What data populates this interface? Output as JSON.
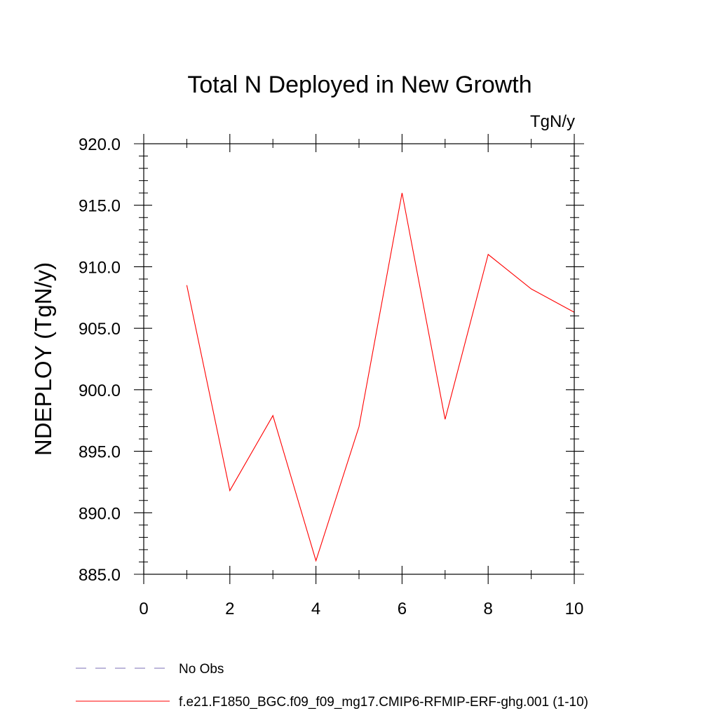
{
  "chart_data": {
    "type": "line",
    "title": "Total N Deployed in New Growth",
    "units_label": "TgN/y",
    "xlabel": "",
    "ylabel": "NDEPLOY  (TgN/y)",
    "xlim": [
      0,
      10
    ],
    "ylim": [
      885,
      920
    ],
    "x_ticks": [
      0,
      2,
      4,
      6,
      8,
      10
    ],
    "y_ticks": [
      885,
      890,
      895,
      900,
      905,
      910,
      915,
      920
    ],
    "y_tick_labels": [
      "885.0",
      "890.0",
      "895.0",
      "900.0",
      "905.0",
      "910.0",
      "915.0",
      "920.0"
    ],
    "grid": false,
    "legend_position": "bottom-left",
    "series": [
      {
        "name": "f.e21.F1850_BGC.f09_f09_mg17.CMIP6-RFMIP-ERF-ghg.001 (1-10)",
        "color": "#ff0000",
        "dash": "solid",
        "x": [
          1,
          2,
          3,
          4,
          5,
          6,
          7,
          8,
          9,
          10
        ],
        "y": [
          908.5,
          891.8,
          897.9,
          886.1,
          897.0,
          916.0,
          897.6,
          911.0,
          908.2,
          906.3
        ]
      }
    ],
    "legend": [
      {
        "label": "No Obs",
        "color": "#7b6fb5",
        "dash": "dashed"
      },
      {
        "label": "f.e21.F1850_BGC.f09_f09_mg17.CMIP6-RFMIP-ERF-ghg.001 (1-10)",
        "color": "#ff0000",
        "dash": "solid"
      }
    ]
  }
}
